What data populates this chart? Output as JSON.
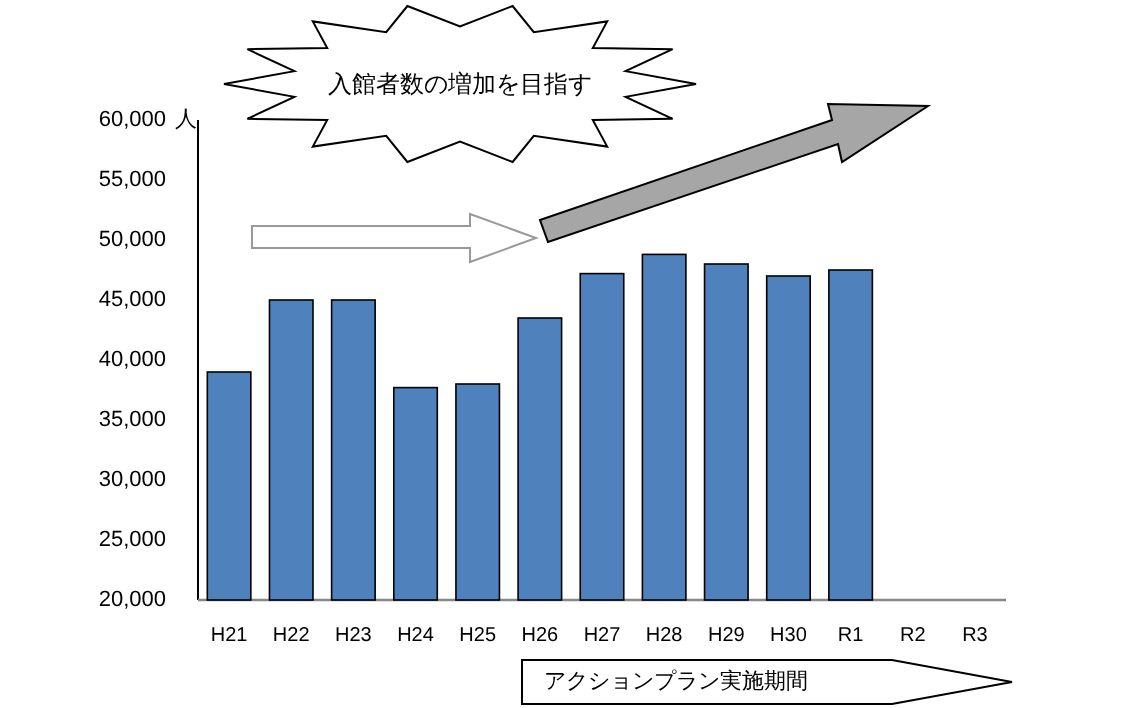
{
  "chart_data": {
    "type": "bar",
    "ylabel": "人",
    "categories": [
      "H21",
      "H22",
      "H23",
      "H24",
      "H25",
      "H26",
      "H27",
      "H28",
      "H29",
      "H30",
      "R1",
      "R2",
      "R3"
    ],
    "values": [
      39000,
      45000,
      45000,
      37700,
      38000,
      43500,
      47200,
      48800,
      48000,
      47000,
      47500,
      null,
      null
    ],
    "color": "#4f81bd",
    "ylim": [
      20000,
      60000
    ],
    "yticks": [
      {
        "value": 20000,
        "label": "20,000"
      },
      {
        "value": 25000,
        "label": "25,000"
      },
      {
        "value": 30000,
        "label": "30,000"
      },
      {
        "value": 35000,
        "label": "35,000"
      },
      {
        "value": 40000,
        "label": "40,000"
      },
      {
        "value": 45000,
        "label": "45,000"
      },
      {
        "value": 50000,
        "label": "50,000"
      },
      {
        "value": 55000,
        "label": "55,000"
      },
      {
        "value": 60000,
        "label": "60,000"
      }
    ],
    "annotations": [
      "入館者数の増加を目指す",
      "アクションプラン実施期間"
    ],
    "grid": false
  }
}
